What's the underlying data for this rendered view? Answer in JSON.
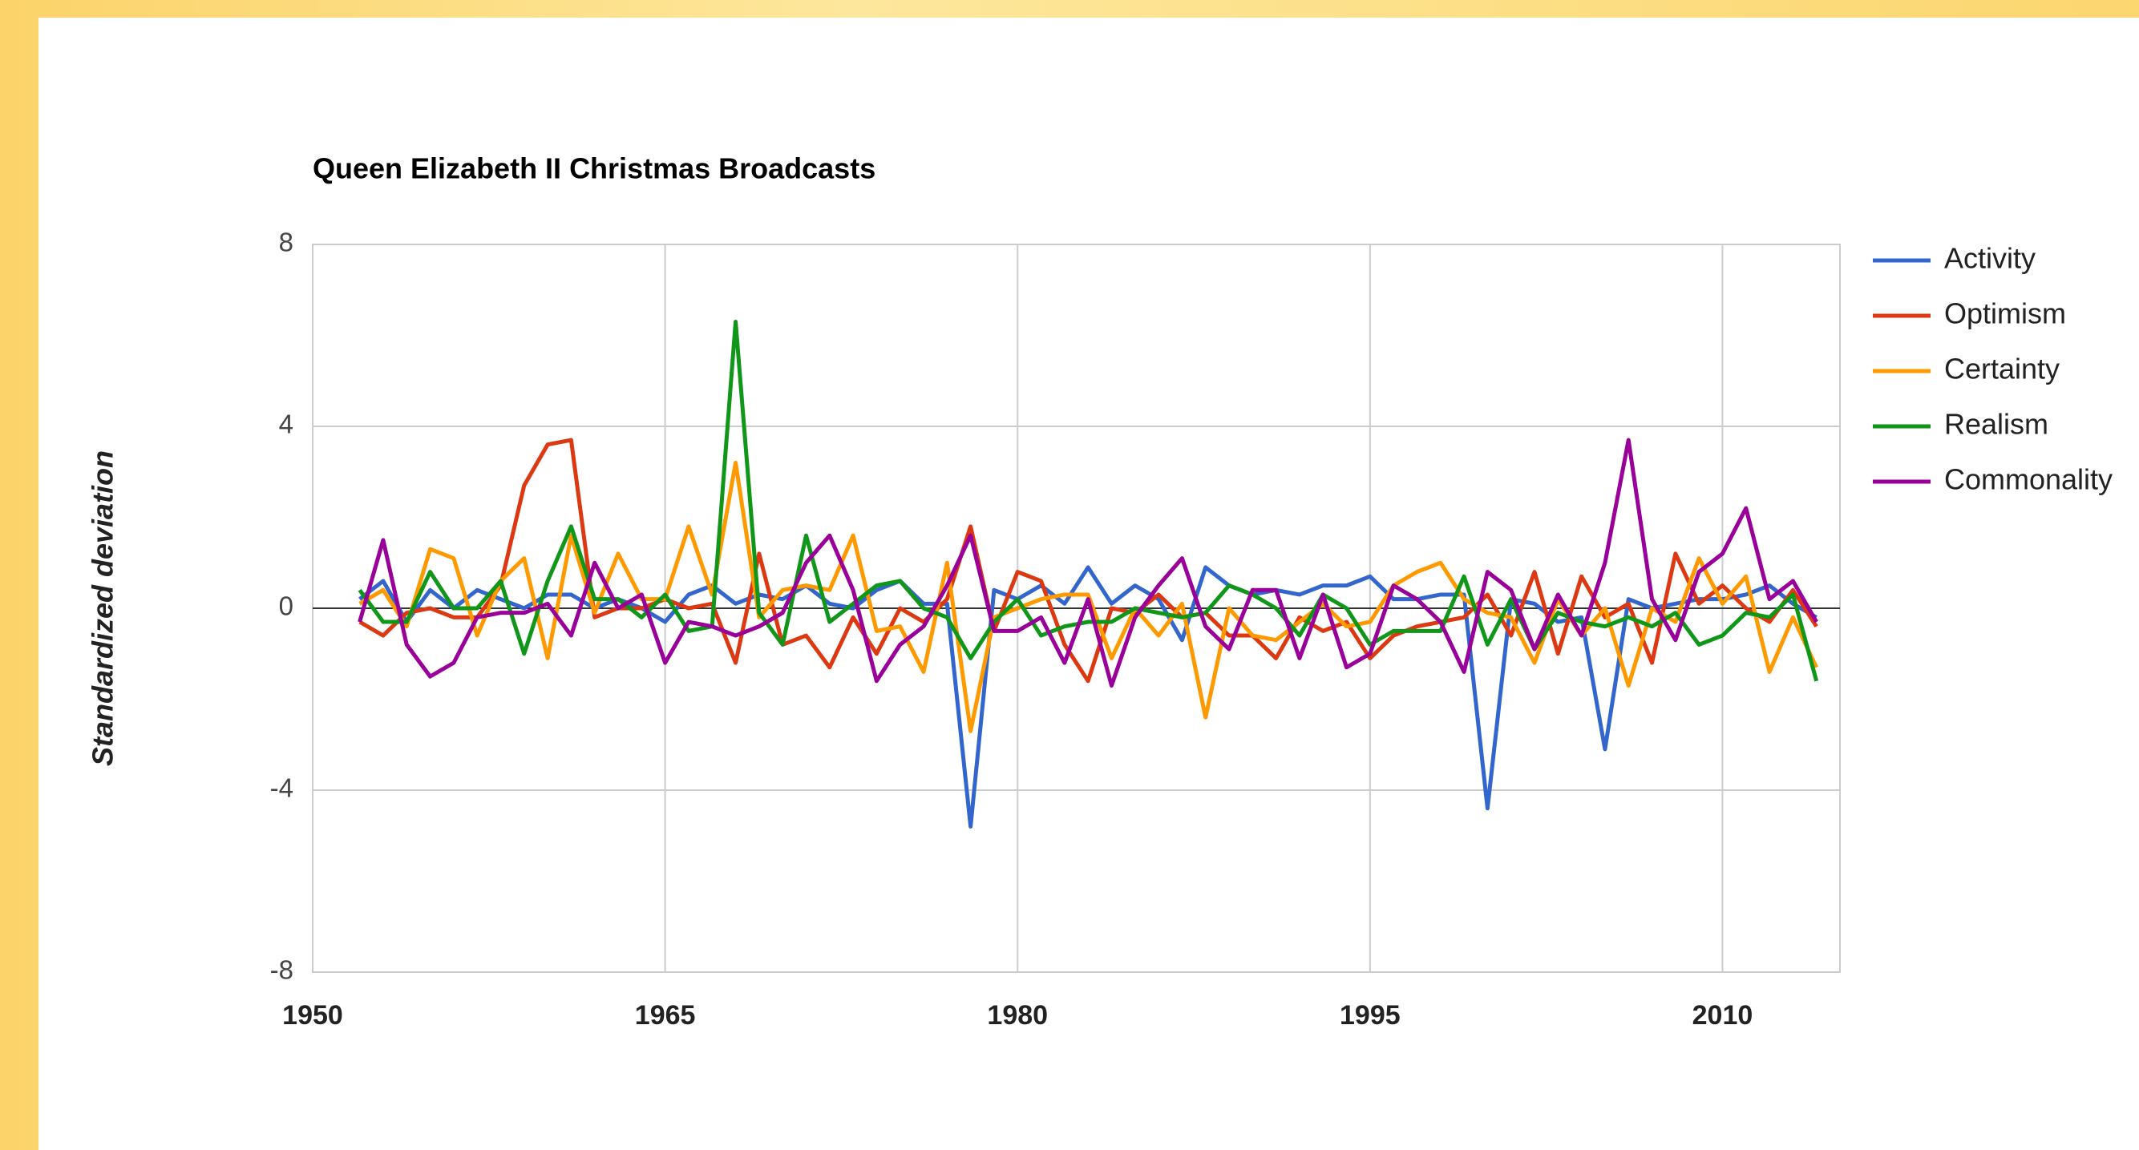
{
  "chart_data": {
    "type": "line",
    "title": "Queen Elizabeth II Christmas Broadcasts",
    "y_label": "Standardized deviation",
    "x": [
      1952,
      1953,
      1954,
      1955,
      1956,
      1957,
      1958,
      1959,
      1960,
      1961,
      1962,
      1963,
      1964,
      1965,
      1966,
      1967,
      1968,
      1969,
      1970,
      1971,
      1972,
      1973,
      1974,
      1975,
      1976,
      1977,
      1978,
      1979,
      1980,
      1981,
      1982,
      1983,
      1984,
      1985,
      1986,
      1987,
      1988,
      1989,
      1990,
      1991,
      1992,
      1993,
      1994,
      1995,
      1996,
      1997,
      1998,
      1999,
      2000,
      2001,
      2002,
      2003,
      2004,
      2005,
      2006,
      2007,
      2008,
      2009,
      2010,
      2011,
      2012,
      2013,
      2014
    ],
    "xlim": [
      1950,
      2015
    ],
    "xticks": [
      1950,
      1965,
      1980,
      1995,
      2010
    ],
    "ylim": [
      -8,
      8
    ],
    "yticks": [
      -8,
      -4,
      0,
      4,
      8
    ],
    "grid": true,
    "legend": "right",
    "series": [
      {
        "name": "Activity",
        "color": "#3366cc",
        "values": [
          0.2,
          0.6,
          -0.3,
          0.4,
          0,
          0.4,
          0.2,
          0,
          0.3,
          0.3,
          0,
          0.2,
          0,
          -0.3,
          0.3,
          0.5,
          0.1,
          0.3,
          0.2,
          0.5,
          0.1,
          0,
          0.4,
          0.6,
          0.1,
          0.1,
          -4.8,
          0.4,
          0.2,
          0.5,
          0.1,
          0.9,
          0.1,
          0.5,
          0.2,
          -0.7,
          0.9,
          0.5,
          0.3,
          0.4,
          0.3,
          0.5,
          0.5,
          0.7,
          0.2,
          0.2,
          0.3,
          0.3,
          -4.4,
          0.2,
          0.1,
          -0.3,
          -0.2,
          -3.1,
          0.2,
          0,
          0.1,
          0.2,
          0.2,
          0.3,
          0.5,
          0.1,
          -0.2
        ]
      },
      {
        "name": "Optimism",
        "color": "#dc3912",
        "values": [
          -0.3,
          -0.6,
          -0.1,
          0,
          -0.2,
          -0.2,
          0.5,
          2.7,
          3.6,
          3.7,
          -0.2,
          0,
          0,
          0.2,
          0,
          0.1,
          -1.2,
          1.2,
          -0.8,
          -0.6,
          -1.3,
          -0.2,
          -1.0,
          0,
          -0.3,
          0.2,
          1.8,
          -0.5,
          0.8,
          0.6,
          -0.8,
          -1.6,
          0,
          -0.1,
          0.3,
          -0.2,
          -0.1,
          -0.6,
          -0.6,
          -1.1,
          -0.2,
          -0.5,
          -0.3,
          -1.1,
          -0.6,
          -0.4,
          -0.3,
          -0.2,
          0.3,
          -0.6,
          0.8,
          -1.0,
          0.7,
          -0.2,
          0.1,
          -1.2,
          1.2,
          0.1,
          0.5,
          0,
          -0.3,
          0.4,
          -0.4
        ]
      },
      {
        "name": "Certainty",
        "color": "#ff9900",
        "values": [
          0.1,
          0.4,
          -0.4,
          1.3,
          1.1,
          -0.6,
          0.6,
          1.1,
          -1.1,
          1.6,
          -0.1,
          1.2,
          0.2,
          0.2,
          1.8,
          0.3,
          3.2,
          -0.2,
          0.4,
          0.5,
          0.4,
          1.6,
          -0.5,
          -0.4,
          -1.4,
          1.0,
          -2.7,
          -0.2,
          0,
          0.2,
          0.3,
          0.3,
          -1.1,
          0,
          -0.6,
          0.1,
          -2.4,
          0,
          -0.6,
          -0.7,
          -0.3,
          0.1,
          -0.4,
          -0.3,
          0.5,
          0.8,
          1.0,
          0.2,
          -0.1,
          -0.2,
          -1.2,
          0.2,
          -0.6,
          0,
          -1.7,
          0,
          -0.3,
          1.1,
          0.1,
          0.7,
          -1.4,
          -0.2,
          -1.3
        ]
      },
      {
        "name": "Realism",
        "color": "#109618",
        "values": [
          0.4,
          -0.3,
          -0.3,
          0.8,
          0,
          0,
          0.6,
          -1.0,
          0.6,
          1.8,
          0.2,
          0.2,
          -0.2,
          0.3,
          -0.5,
          -0.4,
          6.3,
          -0.1,
          -0.8,
          1.6,
          -0.3,
          0.1,
          0.5,
          0.6,
          0,
          -0.2,
          -1.1,
          -0.3,
          0.2,
          -0.6,
          -0.4,
          -0.3,
          -0.3,
          0,
          -0.1,
          -0.2,
          -0.1,
          0.5,
          0.3,
          0,
          -0.6,
          0.3,
          0,
          -0.8,
          -0.5,
          -0.5,
          -0.5,
          0.7,
          -0.8,
          0.2,
          -0.9,
          -0.1,
          -0.3,
          -0.4,
          -0.2,
          -0.4,
          -0.1,
          -0.8,
          -0.6,
          -0.1,
          -0.2,
          0.3,
          -1.6
        ]
      },
      {
        "name": "Commonality",
        "color": "#990099",
        "values": [
          -0.3,
          1.5,
          -0.8,
          -1.5,
          -1.2,
          -0.2,
          -0.1,
          -0.1,
          0.1,
          -0.6,
          1.0,
          0,
          0.3,
          -1.2,
          -0.3,
          -0.4,
          -0.6,
          -0.4,
          -0.1,
          1.0,
          1.6,
          0.4,
          -1.6,
          -0.8,
          -0.4,
          0.5,
          1.6,
          -0.5,
          -0.5,
          -0.2,
          -1.2,
          0.2,
          -1.7,
          -0.2,
          0.5,
          1.1,
          -0.4,
          -0.9,
          0.4,
          0.4,
          -1.1,
          0.3,
          -1.3,
          -1.0,
          0.5,
          0.2,
          -0.3,
          -1.4,
          0.8,
          0.4,
          -0.9,
          0.3,
          -0.6,
          1.0,
          3.7,
          0.2,
          -0.7,
          0.8,
          1.2,
          2.2,
          0.2,
          0.6,
          -0.3
        ]
      }
    ]
  }
}
